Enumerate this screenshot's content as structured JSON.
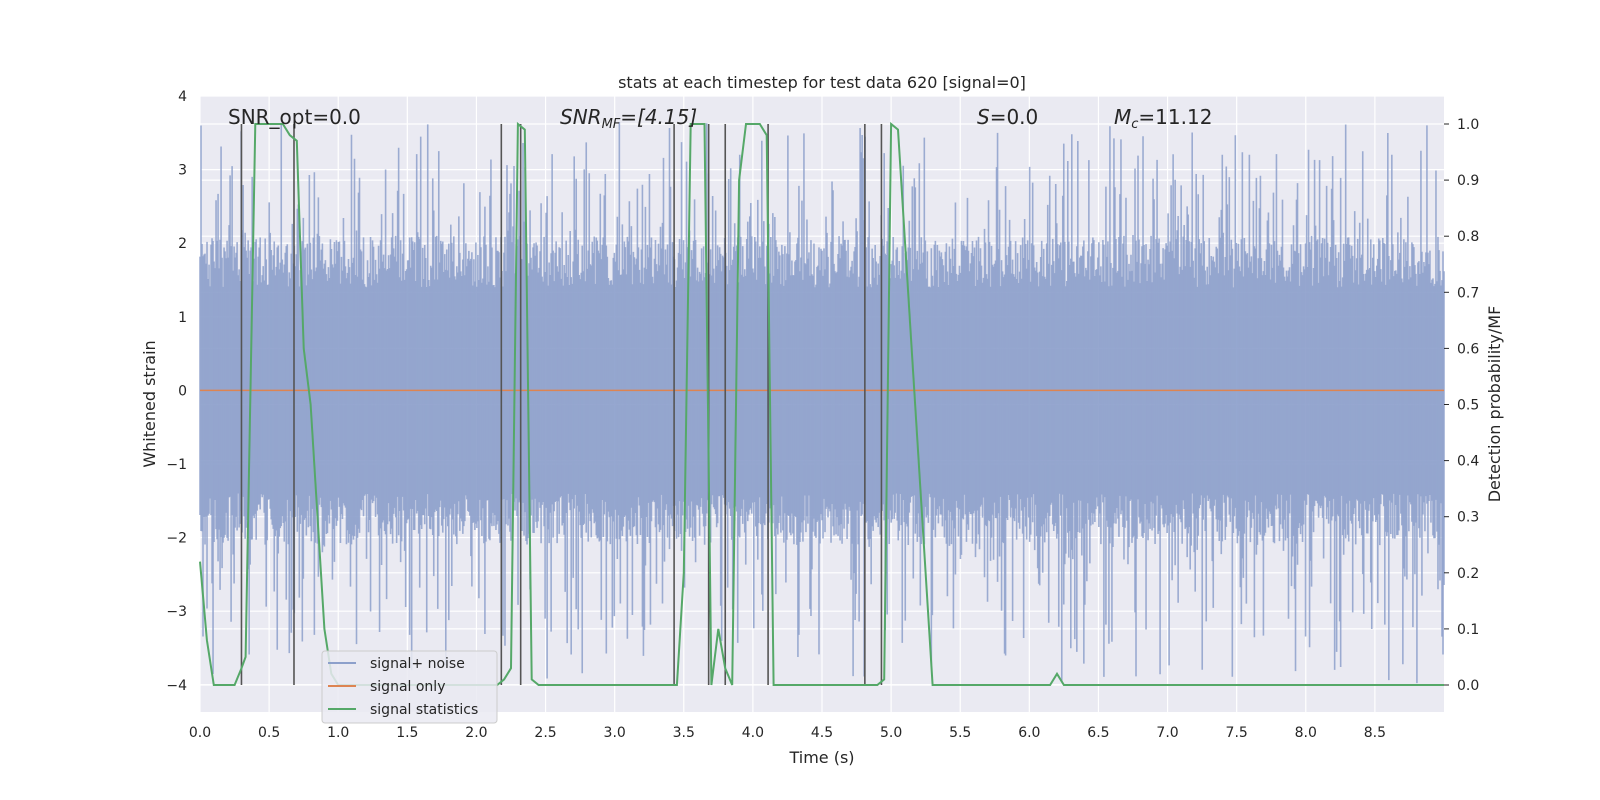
{
  "chart_data": {
    "type": "line",
    "title": "stats at each timestep for test data 620 [signal=0]",
    "xlabel": "Time (s)",
    "ylabel_left": "Whitened strain",
    "ylabel_right": "Detection probability/MF",
    "xlim": [
      0.0,
      9.0
    ],
    "ylim_left": [
      -4.37,
      4.0
    ],
    "ylim_right": [
      -0.05,
      1.0
    ],
    "xticks": [
      "0.0",
      "0.5",
      "1.0",
      "1.5",
      "2.0",
      "2.5",
      "3.0",
      "3.5",
      "4.0",
      "4.5",
      "5.0",
      "5.5",
      "6.0",
      "6.5",
      "7.0",
      "7.5",
      "8.0",
      "8.5"
    ],
    "yticks_left": [
      "4",
      "3",
      "2",
      "1",
      "0",
      "−1",
      "−2",
      "−3",
      "−4"
    ],
    "yticks_right": [
      "1.0",
      "0.9",
      "0.8",
      "0.7",
      "0.6",
      "0.5",
      "0.4",
      "0.3",
      "0.2",
      "0.1",
      "0.0"
    ],
    "grid": true,
    "legend_position": "lower-left",
    "annotations": {
      "snr_opt": "SNR_opt=0.0",
      "snr_mf_sym": "SNR",
      "snr_mf_sub": "MF",
      "snr_mf_val": "=[4.15]",
      "s_sym": "S",
      "s_val": "=0.0",
      "mc_sym": "M",
      "mc_sub": "c",
      "mc_val": "=11.12"
    },
    "noise_band": {
      "typical_low": -1.7,
      "typical_high": 1.7,
      "peak_low": -4.0,
      "peak_high": 3.65
    },
    "series": [
      {
        "name": "signal+ noise",
        "color": "#8da0cb",
        "kind": "noisy strain"
      },
      {
        "name": "signal only",
        "color": "#dd8452",
        "values": 0.0
      },
      {
        "name": "signal statistics",
        "color": "#55a868",
        "x": [
          0.0,
          0.05,
          0.1,
          0.15,
          0.2,
          0.25,
          0.3,
          0.33,
          0.4,
          0.45,
          0.5,
          0.55,
          0.6,
          0.65,
          0.7,
          0.75,
          0.8,
          0.85,
          0.9,
          0.95,
          1.0,
          2.05,
          2.1,
          2.15,
          2.2,
          2.25,
          2.3,
          2.35,
          2.4,
          2.45,
          2.5,
          3.4,
          3.45,
          3.5,
          3.55,
          3.6,
          3.65,
          3.7,
          3.75,
          3.8,
          3.85,
          3.9,
          3.95,
          4.0,
          4.05,
          4.1,
          4.15,
          4.2,
          4.8,
          4.85,
          4.9,
          4.95,
          5.0,
          5.05,
          5.3,
          5.35,
          6.05,
          6.1,
          6.15,
          6.2,
          6.25,
          6.3,
          6.35,
          6.4,
          6.45,
          6.5,
          6.55,
          9.0
        ],
        "values": [
          0.22,
          0.08,
          0.0,
          0.0,
          0.0,
          0.0,
          0.03,
          0.05,
          1.0,
          1.0,
          1.0,
          1.0,
          1.0,
          0.98,
          0.97,
          0.6,
          0.5,
          0.3,
          0.1,
          0.02,
          0.0,
          0.0,
          0.0,
          0.0,
          0.01,
          0.03,
          1.0,
          0.99,
          0.01,
          0.0,
          0.0,
          0.0,
          0.0,
          0.2,
          1.0,
          1.0,
          1.0,
          0.0,
          0.1,
          0.03,
          0.0,
          0.9,
          1.0,
          1.0,
          1.0,
          0.98,
          0.0,
          0.0,
          0.0,
          0.0,
          0.0,
          0.01,
          1.0,
          0.99,
          0.0,
          0.0,
          0.0,
          0.0,
          0.0,
          0.02,
          0.0,
          0.0,
          0.0,
          0.0,
          0.0,
          0.0,
          0.0,
          0.0
        ]
      },
      {
        "name": "detection markers",
        "color": "#555555",
        "x": [
          0.3,
          0.68,
          2.18,
          2.32,
          3.43,
          3.68,
          3.8,
          4.11,
          4.81,
          4.93
        ]
      }
    ]
  }
}
